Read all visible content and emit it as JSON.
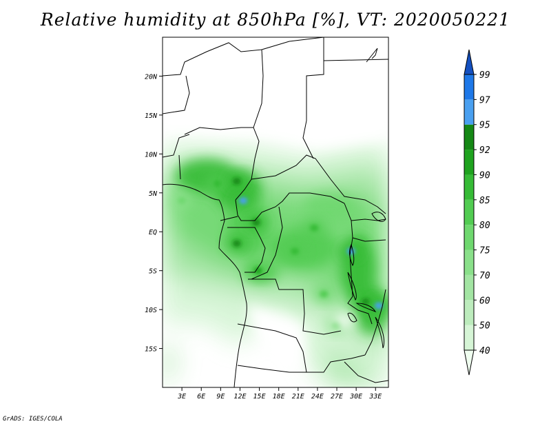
{
  "title": "Relative humidity at 850hPa [%], VT: 2020050221",
  "credit": "GrADS: IGES/COLA",
  "chart_data": {
    "type": "heatmap",
    "title": "Relative humidity at 850hPa [%], VT: 2020050221",
    "variable": "Relative humidity",
    "level": "850hPa",
    "units": "%",
    "valid_time": "2020050221",
    "lon_range": [
      0,
      35
    ],
    "lat_range": [
      -20,
      25
    ],
    "lon_ticks": [
      "3E",
      "6E",
      "9E",
      "12E",
      "15E",
      "18E",
      "21E",
      "24E",
      "27E",
      "30E",
      "33E"
    ],
    "lon_tick_values": [
      3,
      6,
      9,
      12,
      15,
      18,
      21,
      24,
      27,
      30,
      33
    ],
    "lat_ticks": [
      "20N",
      "15N",
      "10N",
      "5N",
      "EQ",
      "5S",
      "10S",
      "15S"
    ],
    "lat_tick_values": [
      20,
      15,
      10,
      5,
      0,
      -5,
      -10,
      -15
    ],
    "colorbar": {
      "levels": [
        "40",
        "50",
        "60",
        "70",
        "75",
        "80",
        "85",
        "90",
        "92",
        "95",
        "97",
        "99"
      ],
      "colors": [
        "#f0fff0",
        "#d6f5d6",
        "#bdecbd",
        "#a3e5a3",
        "#8ae08a",
        "#6fd86f",
        "#52cc52",
        "#36bb36",
        "#1fa31f",
        "#158815",
        "#4aa0f0",
        "#1e78e8",
        "#1450c0"
      ]
    },
    "moist_regions": [
      {
        "lon": 8.5,
        "lat": 6.2,
        "rh": 88
      },
      {
        "lon": 11.5,
        "lat": 6.5,
        "rh": 92
      },
      {
        "lon": 12.5,
        "lat": 4.0,
        "rh": 95
      },
      {
        "lon": 14.5,
        "lat": 1.2,
        "rh": 92
      },
      {
        "lon": 11.5,
        "lat": -1.5,
        "rh": 92
      },
      {
        "lon": 14.8,
        "lat": -5.0,
        "rh": 90
      },
      {
        "lon": 20.5,
        "lat": -2.5,
        "rh": 88
      },
      {
        "lon": 23.5,
        "lat": 0.5,
        "rh": 86
      },
      {
        "lon": 29.2,
        "lat": -2.5,
        "rh": 95
      },
      {
        "lon": 31.5,
        "lat": -9.0,
        "rh": 92
      },
      {
        "lon": 33.5,
        "lat": -9.5,
        "rh": 95
      },
      {
        "lon": 25.0,
        "lat": -8.0,
        "rh": 82
      },
      {
        "lon": 27.0,
        "lat": -12.0,
        "rh": 78
      },
      {
        "lon": 3.0,
        "lat": 4.0,
        "rh": 78
      }
    ]
  }
}
